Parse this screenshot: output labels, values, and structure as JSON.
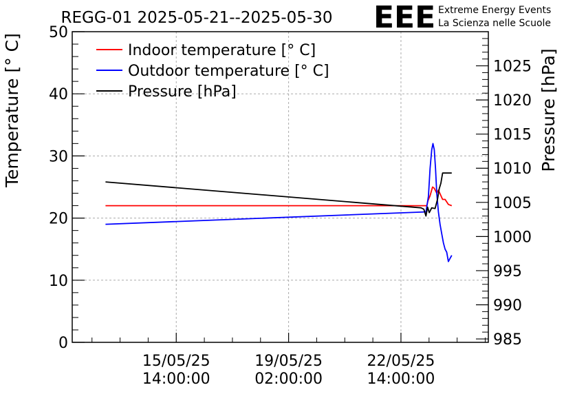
{
  "chart_data": {
    "type": "line",
    "title": "REGG-01 2025-05-21--2025-05-30",
    "logo": {
      "text": "EEE",
      "line1": "Extreme Energy Events",
      "line2": "La Scienza nelle Scuole",
      "color": "#1a1aff"
    },
    "ylabel": "Temperature [° C]",
    "y2label": "Pressure [hPa]",
    "ylim": [
      0,
      50
    ],
    "y2lim": [
      984.5,
      1030
    ],
    "y_ticks": [
      0,
      10,
      20,
      30,
      40,
      50
    ],
    "y2_ticks": [
      985,
      990,
      995,
      1000,
      1005,
      1010,
      1015,
      1020,
      1025
    ],
    "xlim": [
      0,
      100
    ],
    "x_ticks": [
      {
        "pos": 25,
        "date": "15/05/25",
        "time": "14:00:00"
      },
      {
        "pos": 52,
        "date": "19/05/25",
        "time": "02:00:00"
      },
      {
        "pos": 79,
        "date": "22/05/25",
        "time": "14:00:00"
      }
    ],
    "grid": true,
    "legend_position": "top-left",
    "series": [
      {
        "name": "Indoor temperature [° C]",
        "axis": "left",
        "color": "#ff0000",
        "x": [
          8,
          85.2,
          85.5,
          86.0,
          86.6,
          87.0,
          87.6,
          88.0,
          89.0,
          89.6,
          90.4,
          91.2
        ],
        "y": [
          22,
          22,
          22.8,
          23.6,
          25,
          24.8,
          24,
          24.5,
          23,
          23,
          22.2,
          22
        ]
      },
      {
        "name": "Outdoor temperature [° C]",
        "axis": "left",
        "color": "#0000ff",
        "x": [
          8,
          85.0,
          85.6,
          86.0,
          86.4,
          86.7,
          87.0,
          87.3,
          87.6,
          88.0,
          88.4,
          88.8,
          89.2,
          89.6,
          90.0,
          90.4,
          90.8,
          91.2
        ],
        "y": [
          19,
          21,
          23.5,
          28,
          31,
          32,
          31,
          28,
          24,
          21,
          19,
          17.5,
          16,
          15,
          14.5,
          13,
          13.5,
          14
        ]
      },
      {
        "name": "Pressure [hPa]",
        "axis": "right",
        "color": "#000000",
        "x": [
          8,
          83.8,
          84.5,
          85.0,
          85.4,
          85.8,
          86.4,
          87.2,
          87.8,
          88.2,
          88.6,
          89.0,
          91.2
        ],
        "y": [
          1008,
          1004.2,
          1004.0,
          1003.0,
          1004.3,
          1003.5,
          1004.2,
          1004.1,
          1005.5,
          1007.0,
          1007.8,
          1009.3,
          1009.3
        ]
      }
    ]
  }
}
